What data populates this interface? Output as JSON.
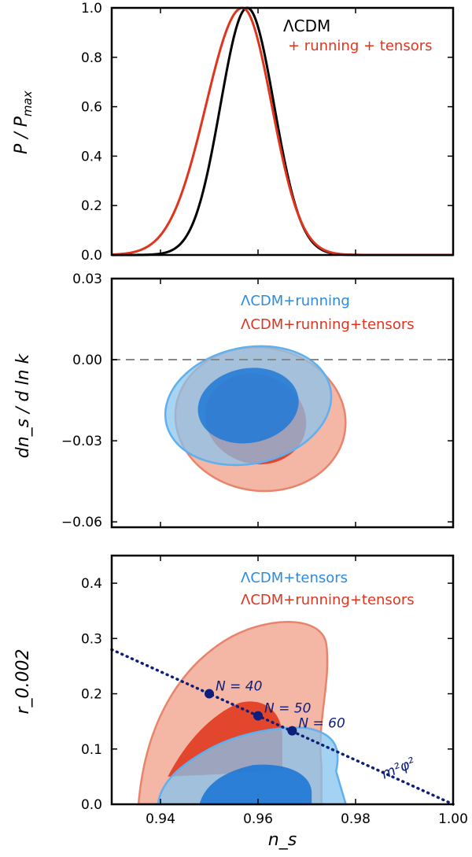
{
  "chart_data": [
    {
      "type": "line",
      "panel": "top",
      "ylabel": "P / P_max",
      "ylabel_main": "P / P",
      "ylabel_sub": "max",
      "xlim": [
        0.93,
        1.0
      ],
      "ylim": [
        0.0,
        1.0
      ],
      "yticks": [
        0.0,
        0.2,
        0.4,
        0.6,
        0.8,
        1.0
      ],
      "ytick_labels": [
        "0.0",
        "0.2",
        "0.4",
        "0.6",
        "0.8",
        "1.0"
      ],
      "series": [
        {
          "name": "ΛCDM",
          "color": "#000000",
          "mean": 0.9578,
          "sigma": 0.0055,
          "skew": 0
        },
        {
          "name": "+ running + tensors",
          "color": "#e0341c",
          "mean": 0.9568,
          "sigma": 0.0065,
          "skew": 0.15
        }
      ],
      "legend": [
        "ΛCDM",
        "+ running + tensors"
      ]
    },
    {
      "type": "contour",
      "panel": "middle",
      "ylabel": "dn_s / d ln k",
      "xlim": [
        0.93,
        1.0
      ],
      "ylim": [
        -0.062,
        0.03
      ],
      "yticks": [
        0.03,
        0.0,
        -0.03,
        -0.06
      ],
      "ytick_labels": [
        "0.03",
        "0.00",
        "−0.03",
        "−0.06"
      ],
      "hline": 0.0,
      "series": [
        {
          "name": "ΛCDM+running+tensors",
          "color": "#e0341c",
          "contour_95": {
            "cx": 0.9605,
            "cy": -0.022,
            "rx": 0.0175,
            "ry": 0.0265,
            "tilt": 8
          },
          "contour_68": {
            "cx": 0.9595,
            "cy": -0.022,
            "rx": 0.0105,
            "ry": 0.0165,
            "tilt": 18
          }
        },
        {
          "name": "ΛCDM+running",
          "color": "#2a8be0",
          "contour_95": {
            "cx": 0.958,
            "cy": -0.017,
            "rx": 0.0172,
            "ry": 0.0215,
            "tilt": -12
          },
          "contour_68": {
            "cx": 0.958,
            "cy": -0.017,
            "rx": 0.0104,
            "ry": 0.0138,
            "tilt": -10
          }
        }
      ],
      "legend": [
        "ΛCDM+running",
        "ΛCDM+running+tensors"
      ]
    },
    {
      "type": "contour",
      "panel": "bottom",
      "xlabel": "n_s",
      "ylabel": "r_0.002",
      "xlim": [
        0.93,
        1.0
      ],
      "ylim": [
        0.0,
        0.45
      ],
      "xticks": [
        0.94,
        0.96,
        0.98,
        1.0
      ],
      "xtick_labels": [
        "0.94",
        "0.96",
        "0.98",
        "1.00"
      ],
      "yticks": [
        0.0,
        0.1,
        0.2,
        0.3,
        0.4
      ],
      "ytick_labels": [
        "0.0",
        "0.1",
        "0.2",
        "0.3",
        "0.4"
      ],
      "series": [
        {
          "name": "ΛCDM+running+tensors",
          "color": "#e0341c"
        },
        {
          "name": "ΛCDM+tensors",
          "color": "#2a8be0"
        }
      ],
      "legend": [
        "ΛCDM+tensors",
        "ΛCDM+running+tensors"
      ],
      "model_line": {
        "name": "m²φ²",
        "x": [
          0.93,
          1.0
        ],
        "y": [
          0.28,
          0.0
        ]
      },
      "points": [
        {
          "label": "N = 40",
          "x": 0.95,
          "y": 0.2
        },
        {
          "label": "N = 50",
          "x": 0.96,
          "y": 0.16
        },
        {
          "label": "N = 60",
          "x": 0.967,
          "y": 0.133
        }
      ]
    }
  ]
}
